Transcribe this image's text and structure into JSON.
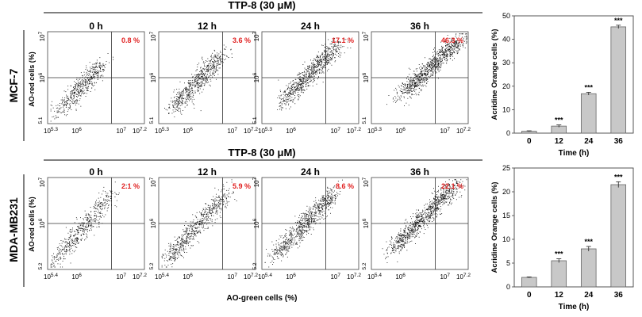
{
  "rows": [
    {
      "cell_line": "MCF-7",
      "treatment": "TTP-8 (30 μM)",
      "ylabel": "AO-red cells (%)",
      "y_ticks": [
        {
          "base": "10",
          "exp": "7"
        },
        {
          "base": "10",
          "exp": "6"
        },
        {
          "base": "",
          "exp": "5.1"
        }
      ],
      "x_ticks": [
        {
          "base": "10",
          "exp": "5.3"
        },
        {
          "base": "10",
          "exp": "6"
        },
        {
          "base": "10",
          "exp": "7"
        },
        {
          "base": "10",
          "exp": "7.2"
        }
      ],
      "panels": [
        {
          "time": "0 h",
          "percent": "0.8 %",
          "cx": 0.34,
          "cy": 0.4,
          "spread": 0.2,
          "density": 0.0
        },
        {
          "time": "12 h",
          "percent": "3.6 %",
          "cx": 0.4,
          "cy": 0.46,
          "spread": 0.24,
          "density": 1.0
        },
        {
          "time": "24 h",
          "percent": "17.1 %",
          "cx": 0.5,
          "cy": 0.55,
          "spread": 0.26,
          "density": 2.0
        },
        {
          "time": "36 h",
          "percent": "46.3 %",
          "cx": 0.62,
          "cy": 0.62,
          "spread": 0.3,
          "density": 3.0
        }
      ]
    },
    {
      "cell_line": "MDA-MB231",
      "treatment": "TTP-8 (30 μM)",
      "ylabel": "AO-red cells (%)",
      "xlabel": "AO-green cells (%)",
      "y_ticks": [
        {
          "base": "10",
          "exp": "7"
        },
        {
          "base": "10",
          "exp": "6"
        },
        {
          "base": "",
          "exp": "5.2"
        }
      ],
      "x_ticks": [
        {
          "base": "10",
          "exp": "5.4"
        },
        {
          "base": "10",
          "exp": "6"
        },
        {
          "base": "10",
          "exp": "7"
        },
        {
          "base": "10",
          "exp": "7.2"
        }
      ],
      "panels": [
        {
          "time": "0 h",
          "percent": "2.1 %",
          "cx": 0.36,
          "cy": 0.45,
          "spread": 0.28,
          "density": 0.0
        },
        {
          "time": "12 h",
          "percent": "5.9 %",
          "cx": 0.4,
          "cy": 0.48,
          "spread": 0.3,
          "density": 1.0
        },
        {
          "time": "24 h",
          "percent": "8.6 %",
          "cx": 0.44,
          "cy": 0.5,
          "spread": 0.3,
          "density": 2.0
        },
        {
          "time": "36 h",
          "percent": "22.1 %",
          "cx": 0.55,
          "cy": 0.58,
          "spread": 0.32,
          "density": 3.0
        }
      ]
    }
  ],
  "chart_data": [
    {
      "type": "bar",
      "title": "",
      "categories": [
        "0",
        "12",
        "24",
        "36"
      ],
      "values": [
        0.8,
        3.0,
        16.8,
        45.3
      ],
      "errors": [
        0.2,
        0.5,
        0.6,
        0.7
      ],
      "significance": [
        "",
        "***",
        "***",
        "***"
      ],
      "xlabel": "Time (h)",
      "ylabel": "Acridine Orange cells (%)",
      "ylim": [
        0,
        50
      ],
      "yticks": [
        0,
        10,
        20,
        30,
        40,
        50
      ],
      "bar_color": "#c8c8c8"
    },
    {
      "type": "bar",
      "title": "",
      "categories": [
        "0",
        "12",
        "24",
        "36"
      ],
      "values": [
        2.0,
        5.5,
        8.0,
        21.5
      ],
      "errors": [
        0.1,
        0.4,
        0.5,
        0.6
      ],
      "significance": [
        "",
        "***",
        "***",
        "***"
      ],
      "xlabel": "Time (h)",
      "ylabel": "Acridine Orange cells (%)",
      "ylim": [
        0,
        25
      ],
      "yticks": [
        0,
        5,
        10,
        15,
        20,
        25
      ],
      "bar_color": "#c8c8c8"
    }
  ],
  "colors": {
    "percent_text": "#e02020",
    "dots": "#111111",
    "bar_fill": "#c8c8c8"
  }
}
